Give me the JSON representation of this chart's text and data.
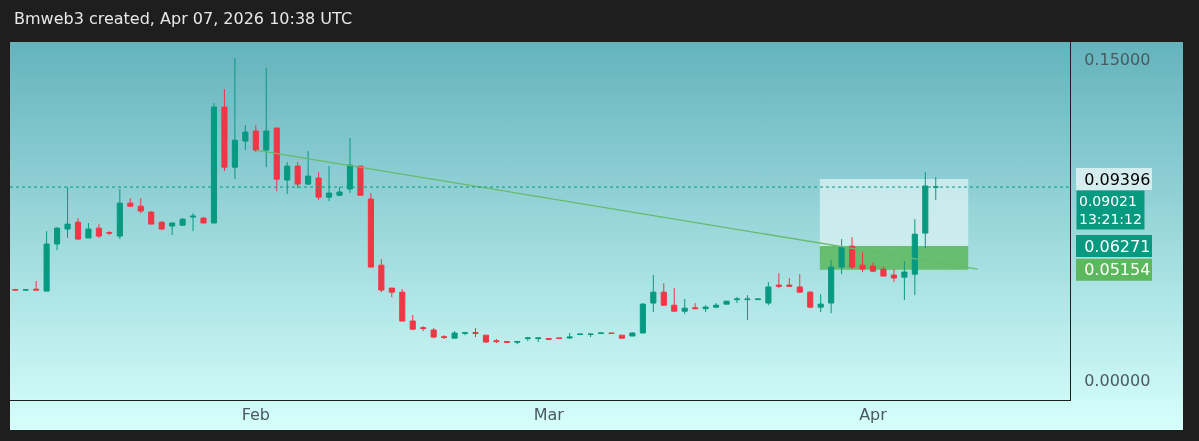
{
  "chart_data": {
    "type": "candlestick",
    "title": "Bmweb3 created, Apr 07, 2026 10:38 UTC",
    "x": [
      "2026-01-09",
      "2026-01-10",
      "2026-01-11",
      "2026-01-12",
      "2026-01-13",
      "2026-01-14",
      "2026-01-15",
      "2026-01-16",
      "2026-01-17",
      "2026-01-18",
      "2026-01-19",
      "2026-01-20",
      "2026-01-21",
      "2026-01-22",
      "2026-01-23",
      "2026-01-24",
      "2026-01-25",
      "2026-01-26",
      "2026-01-27",
      "2026-01-28",
      "2026-01-29",
      "2026-01-30",
      "2026-01-31",
      "2026-02-01",
      "2026-02-02",
      "2026-02-03",
      "2026-02-04",
      "2026-02-05",
      "2026-02-06",
      "2026-02-07",
      "2026-02-08",
      "2026-02-09",
      "2026-02-10",
      "2026-02-11",
      "2026-02-12",
      "2026-02-13",
      "2026-02-14",
      "2026-02-15",
      "2026-02-16",
      "2026-02-17",
      "2026-02-18",
      "2026-02-19",
      "2026-02-20",
      "2026-02-21",
      "2026-02-22",
      "2026-02-23",
      "2026-02-24",
      "2026-02-25",
      "2026-02-26",
      "2026-02-27",
      "2026-02-28",
      "2026-03-01",
      "2026-03-02",
      "2026-03-03",
      "2026-03-04",
      "2026-03-05",
      "2026-03-06",
      "2026-03-07",
      "2026-03-08",
      "2026-03-09",
      "2026-03-10",
      "2026-03-11",
      "2026-03-12",
      "2026-03-13",
      "2026-03-14",
      "2026-03-15",
      "2026-03-16",
      "2026-03-17",
      "2026-03-18",
      "2026-03-19",
      "2026-03-20",
      "2026-03-21",
      "2026-03-22",
      "2026-03-23",
      "2026-03-24",
      "2026-03-25",
      "2026-03-26",
      "2026-03-27",
      "2026-03-28",
      "2026-03-29",
      "2026-03-30",
      "2026-03-31",
      "2026-04-01",
      "2026-04-02",
      "2026-04-03",
      "2026-04-04",
      "2026-04-05",
      "2026-04-06",
      "2026-04-07"
    ],
    "ohlc": [
      [
        0.0423,
        0.0426,
        0.0419,
        0.0421
      ],
      [
        0.0421,
        0.0423,
        0.0419,
        0.0422
      ],
      [
        0.0425,
        0.0463,
        0.0418,
        0.0421
      ],
      [
        0.0416,
        0.0696,
        0.0416,
        0.0636
      ],
      [
        0.0636,
        0.0715,
        0.0607,
        0.071
      ],
      [
        0.0706,
        0.0902,
        0.0664,
        0.0729
      ],
      [
        0.0738,
        0.0757,
        0.0654,
        0.0659
      ],
      [
        0.0664,
        0.0734,
        0.0664,
        0.0706
      ],
      [
        0.071,
        0.0729,
        0.0664,
        0.0673
      ],
      [
        0.0689,
        0.0696,
        0.0678,
        0.0687
      ],
      [
        0.0673,
        0.0893,
        0.0659,
        0.0827
      ],
      [
        0.0827,
        0.085,
        0.0808,
        0.0813
      ],
      [
        0.0813,
        0.085,
        0.078,
        0.079
      ],
      [
        0.0785,
        0.079,
        0.0729,
        0.0729
      ],
      [
        0.0738,
        0.0743,
        0.0701,
        0.0706
      ],
      [
        0.072,
        0.0738,
        0.0678,
        0.0734
      ],
      [
        0.0724,
        0.0757,
        0.072,
        0.0752
      ],
      [
        0.0762,
        0.078,
        0.0696,
        0.0766
      ],
      [
        0.0757,
        0.0762,
        0.0734,
        0.0734
      ],
      [
        0.0734,
        0.1294,
        0.0734,
        0.1276
      ],
      [
        0.1276,
        0.136,
        0.0977,
        0.0995
      ],
      [
        0.0995,
        0.1505,
        0.0939,
        0.1121
      ],
      [
        0.1117,
        0.1192,
        0.1075,
        0.1159
      ],
      [
        0.1164,
        0.1192,
        0.1065,
        0.1075
      ],
      [
        0.1075,
        0.1458,
        0.0995,
        0.1164
      ],
      [
        0.1178,
        0.1178,
        0.0883,
        0.0939
      ],
      [
        0.0935,
        0.1019,
        0.0869,
        0.1
      ],
      [
        0.1,
        0.1019,
        0.0897,
        0.0916
      ],
      [
        0.0916,
        0.107,
        0.0911,
        0.0953
      ],
      [
        0.0944,
        0.0972,
        0.0841,
        0.0855
      ],
      [
        0.0855,
        0.1,
        0.0836,
        0.0874
      ],
      [
        0.0864,
        0.0902,
        0.086,
        0.0879
      ],
      [
        0.0893,
        0.1131,
        0.0874,
        0.1005
      ],
      [
        0.1,
        0.1,
        0.0864,
        0.0864
      ],
      [
        0.0846,
        0.0874,
        0.0528,
        0.0528
      ],
      [
        0.0537,
        0.0565,
        0.0411,
        0.0421
      ],
      [
        0.043,
        0.043,
        0.0388,
        0.0411
      ],
      [
        0.0411,
        0.0425,
        0.0276,
        0.0276
      ],
      [
        0.0276,
        0.0304,
        0.0234,
        0.0238
      ],
      [
        0.0245,
        0.0252,
        0.0229,
        0.0241
      ],
      [
        0.0234,
        0.0243,
        0.0196,
        0.0201
      ],
      [
        0.0203,
        0.021,
        0.0192,
        0.0199
      ],
      [
        0.0196,
        0.0229,
        0.0196,
        0.022
      ],
      [
        0.0219,
        0.0221,
        0.021,
        0.0221
      ],
      [
        0.0222,
        0.0243,
        0.0201,
        0.0218
      ],
      [
        0.021,
        0.021,
        0.0173,
        0.0178
      ],
      [
        0.0184,
        0.0192,
        0.0173,
        0.018
      ],
      [
        0.018,
        0.0182,
        0.0173,
        0.0177
      ],
      [
        0.0177,
        0.018,
        0.0168,
        0.018
      ],
      [
        0.0194,
        0.0201,
        0.0182,
        0.0197
      ],
      [
        0.0194,
        0.0197,
        0.0178,
        0.0197
      ],
      [
        0.0194,
        0.0196,
        0.0187,
        0.0191
      ],
      [
        0.0197,
        0.0197,
        0.0195,
        0.0195
      ],
      [
        0.0197,
        0.022,
        0.0192,
        0.0201
      ],
      [
        0.0213,
        0.0215,
        0.0213,
        0.0215
      ],
      [
        0.0213,
        0.0215,
        0.0201,
        0.0215
      ],
      [
        0.0218,
        0.022,
        0.0218,
        0.022
      ],
      [
        0.022,
        0.022,
        0.0218,
        0.0218
      ],
      [
        0.021,
        0.021,
        0.0196,
        0.0196
      ],
      [
        0.0206,
        0.0224,
        0.0206,
        0.022
      ],
      [
        0.022,
        0.036,
        0.022,
        0.0355
      ],
      [
        0.036,
        0.0491,
        0.0318,
        0.0411
      ],
      [
        0.0411,
        0.0453,
        0.0346,
        0.035
      ],
      [
        0.035,
        0.043,
        0.0322,
        0.0322
      ],
      [
        0.0322,
        0.0379,
        0.0308,
        0.0336
      ],
      [
        0.0338,
        0.036,
        0.0332,
        0.0334
      ],
      [
        0.0334,
        0.035,
        0.0318,
        0.0341
      ],
      [
        0.0341,
        0.036,
        0.0336,
        0.035
      ],
      [
        0.0355,
        0.0369,
        0.0355,
        0.0369
      ],
      [
        0.0376,
        0.0388,
        0.036,
        0.0379
      ],
      [
        0.0376,
        0.0397,
        0.028,
        0.0379
      ],
      [
        0.0376,
        0.0379,
        0.0376,
        0.0379
      ],
      [
        0.036,
        0.0458,
        0.035,
        0.0435
      ],
      [
        0.0444,
        0.05,
        0.043,
        0.0439
      ],
      [
        0.0444,
        0.0477,
        0.0435,
        0.0439
      ],
      [
        0.0435,
        0.0495,
        0.0411,
        0.0411
      ],
      [
        0.0411,
        0.0416,
        0.0336,
        0.0341
      ],
      [
        0.0341,
        0.0402,
        0.0318,
        0.0355
      ],
      [
        0.036,
        0.0561,
        0.0313,
        0.0528
      ],
      [
        0.0528,
        0.0659,
        0.0495,
        0.0621
      ],
      [
        0.0626,
        0.0668,
        0.0519,
        0.0528
      ],
      [
        0.0537,
        0.0598,
        0.0505,
        0.0519
      ],
      [
        0.0533,
        0.0551,
        0.0505,
        0.0509
      ],
      [
        0.0519,
        0.0533,
        0.0486,
        0.0486
      ],
      [
        0.0491,
        0.0519,
        0.0458,
        0.0477
      ],
      [
        0.0481,
        0.0556,
        0.0374,
        0.0505
      ],
      [
        0.0495,
        0.0752,
        0.0397,
        0.0682
      ],
      [
        0.0687,
        0.0972,
        0.0617,
        0.0907
      ],
      [
        0.0902,
        0.0949,
        0.0841,
        0.09021
      ]
    ],
    "series": [
      {
        "type": "line",
        "x": [
          "2026-02-01",
          "2026-04-11"
        ],
        "values": [
          0.1075,
          0.0519
        ],
        "color": "#66bb6a"
      }
    ],
    "xlim": [
      "2026-01-08T12:00",
      "2026-04-19T20:00"
    ],
    "xticks": [
      {
        "value": "2026-02-01",
        "label": "Feb"
      },
      {
        "value": "2026-03-01",
        "label": "Mar"
      },
      {
        "value": "2026-04-01",
        "label": "Apr"
      }
    ],
    "ylim": [
      -0.0093,
      0.158
    ],
    "yticks": [
      {
        "value": 0,
        "label": "0.00000"
      },
      {
        "value": 0.05154,
        "label": "0.05154"
      },
      {
        "value": 0.06271,
        "label": "0.06271"
      },
      {
        "value": 0.09396,
        "label": "0.09396"
      },
      {
        "value": 0.15,
        "label": "0.15000"
      }
    ],
    "ref_lines": [
      {
        "axis": "y",
        "value": 0.09021,
        "label": "0.09021\n13:21:12",
        "color": "#089981",
        "line_style": "dotted"
      }
    ],
    "bands": [
      {
        "axis": "y",
        "from": 0.06271,
        "to": 0.09396,
        "color": "#d4eef0"
      },
      {
        "axis": "y",
        "from": 0.06271,
        "to": 0.05154,
        "color": "#5cb85c"
      }
    ],
    "grid": false
  }
}
